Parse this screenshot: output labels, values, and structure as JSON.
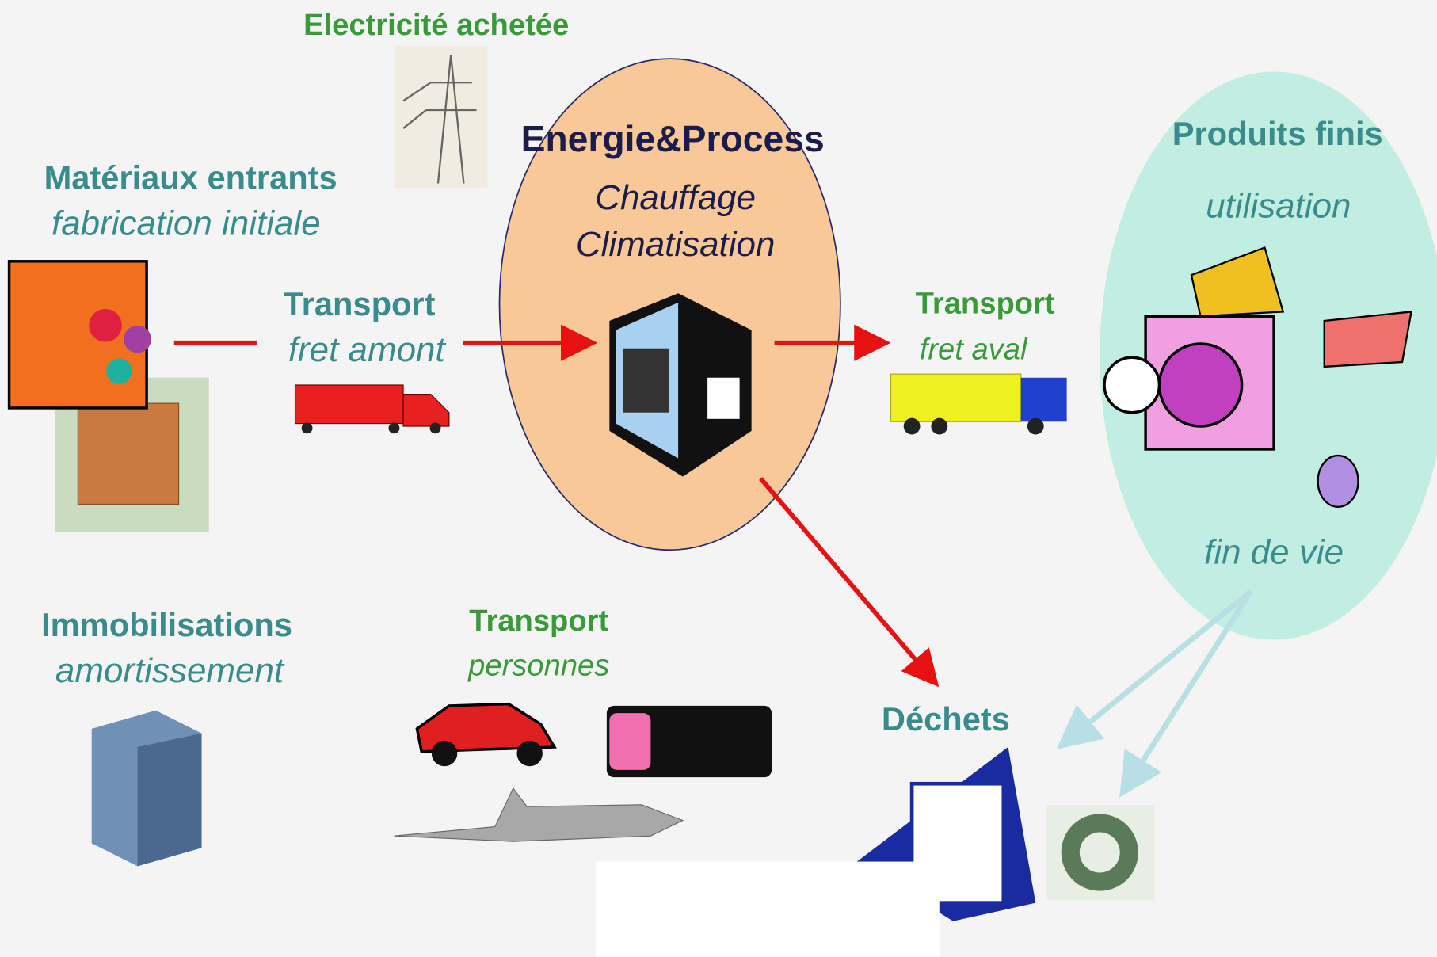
{
  "electricity": {
    "title": "Electricité achetée"
  },
  "process": {
    "title": "Energie&Process",
    "lines": [
      "Chauffage",
      "Climatisation"
    ]
  },
  "materials": {
    "title": "Matériaux entrants",
    "subtitle": "fabrication initiale"
  },
  "upstream_freight": {
    "title": "Transport",
    "subtitle": "fret amont"
  },
  "downstream_freight": {
    "title": "Transport",
    "subtitle": "fret aval"
  },
  "finished_products": {
    "title": "Produits finis",
    "use": "utilisation",
    "end_of_life": "fin de vie"
  },
  "fixed_assets": {
    "title": "Immobilisations",
    "subtitle": "amortissement"
  },
  "people_transport": {
    "title": "Transport",
    "subtitle": "personnes"
  },
  "waste": {
    "title": "Déchets"
  }
}
